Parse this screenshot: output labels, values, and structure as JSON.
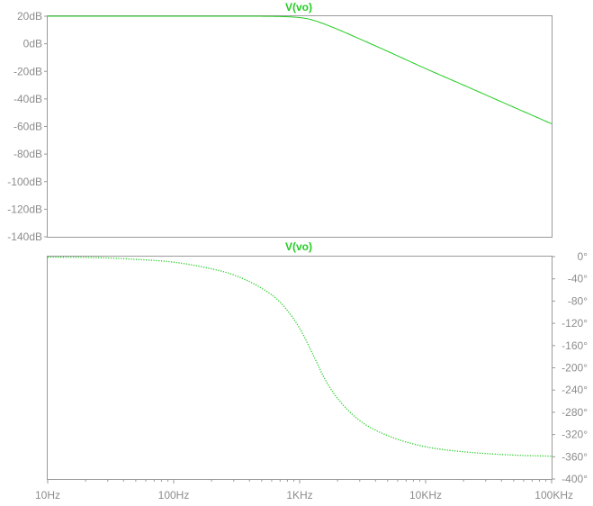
{
  "colors": {
    "trace": "#22cc22",
    "axis_frame": "#9a9a9a",
    "tick_text": "#8c8c8c",
    "background": "#ffffff"
  },
  "chart_data": [
    {
      "type": "line",
      "title": "V(vo)",
      "xlabel": "",
      "ylabel": "",
      "xscale": "log",
      "xlim": [
        10,
        100000
      ],
      "ylim": [
        -140,
        20
      ],
      "grid": false,
      "x_tick_values": [
        10,
        100,
        1000,
        10000,
        100000
      ],
      "y_tick_values": [
        20,
        0,
        -20,
        -40,
        -60,
        -80,
        -100,
        -120,
        -140
      ],
      "y_tick_labels": [
        "20dB",
        "0dB",
        "-20dB",
        "-40dB",
        "-60dB",
        "-80dB",
        "-100dB",
        "-120dB",
        "-140dB"
      ],
      "series": [
        {
          "name": "V(vo)",
          "line_style": "solid",
          "x": [
            10,
            100,
            300,
            600,
            800,
            1000,
            1200,
            1500,
            2000,
            3000,
            5000,
            10000,
            20000,
            50000,
            100000
          ],
          "y": [
            20,
            20,
            20,
            19.9,
            19.6,
            19,
            17.8,
            15,
            10.5,
            3.5,
            -5.5,
            -18,
            -30,
            -46,
            -58
          ]
        }
      ]
    },
    {
      "type": "line",
      "title": "V(vo)",
      "xlabel": "",
      "ylabel": "",
      "xscale": "log",
      "xlim": [
        10,
        100000
      ],
      "ylim": [
        -400,
        0
      ],
      "y_axis_side": "right",
      "grid": false,
      "x_tick_values": [
        10,
        100,
        1000,
        10000,
        100000
      ],
      "x_tick_labels": [
        "10Hz",
        "100Hz",
        "1KHz",
        "10KHz",
        "100KHz"
      ],
      "y_tick_values": [
        0,
        -40,
        -80,
        -120,
        -160,
        -200,
        -240,
        -280,
        -320,
        -360,
        -400
      ],
      "y_tick_labels": [
        "0°",
        "-40°",
        "-80°",
        "-120°",
        "-160°",
        "-200°",
        "-240°",
        "-280°",
        "-320°",
        "-360°",
        "-400°"
      ],
      "series": [
        {
          "name": "V(vo)",
          "line_style": "dotted",
          "x": [
            10,
            20,
            30,
            50,
            100,
            200,
            300,
            500,
            700,
            1000,
            1300,
            1600,
            2000,
            3000,
            5000,
            10000,
            20000,
            50000,
            100000
          ],
          "y": [
            -1,
            -1.5,
            -2.5,
            -5,
            -10,
            -22,
            -33,
            -57,
            -82,
            -129,
            -180,
            -222,
            -255,
            -295,
            -322,
            -342,
            -351,
            -357,
            -359
          ]
        }
      ]
    }
  ]
}
